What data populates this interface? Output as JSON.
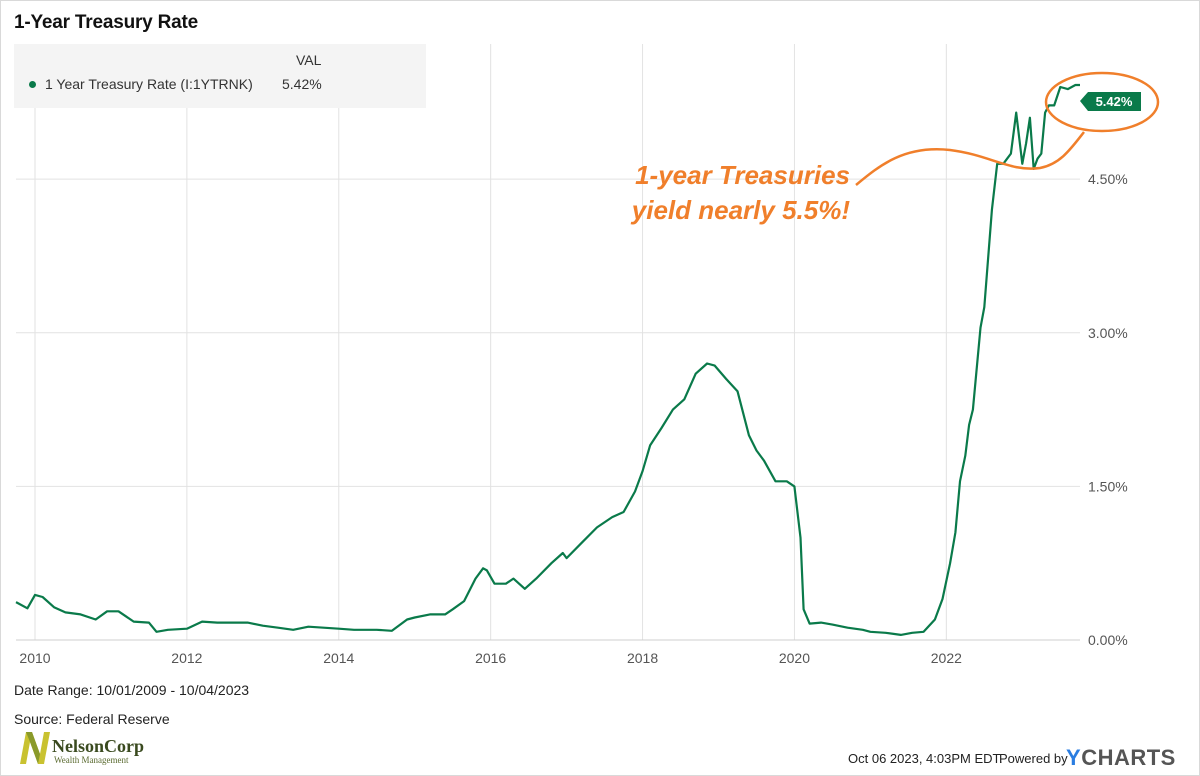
{
  "title": "1-Year Treasury Rate",
  "legend": {
    "header": "VAL",
    "series_name": "1 Year Treasury Rate (I:1YTRNK)",
    "series_value": "5.42%"
  },
  "annotation": {
    "line1": "1-year Treasuries",
    "line2": "yield nearly 5.5%!"
  },
  "footer": {
    "date_range": "Date Range: 10/01/2009 - 10/04/2023",
    "source": "Source: Federal Reserve",
    "timestamp": "Oct 06 2023, 4:03PM EDT.",
    "powered_by": "Powered by",
    "brand_prefix": "Y",
    "brand_rest": "CHARTS"
  },
  "logo": {
    "name": "NelsonCorp",
    "subtitle": "Wealth Management"
  },
  "colors": {
    "series": "#0a7a4a",
    "annotation": "#f07f2b",
    "grid": "#e2e2e2",
    "brand_blue": "#2a7de1"
  },
  "chart_data": {
    "type": "line",
    "title": "1-Year Treasury Rate",
    "x_ticks": [
      "2010",
      "2012",
      "2014",
      "2016",
      "2018",
      "2020",
      "2022"
    ],
    "y_ticks": [
      "0.00%",
      "1.50%",
      "3.00%",
      "4.50%"
    ],
    "xlim": [
      2009.75,
      2023.76
    ],
    "ylim": [
      0,
      5.82
    ],
    "grid": true,
    "legend_position": "top-left",
    "last_value_label": "5.42%",
    "series": [
      {
        "name": "1 Year Treasury Rate (I:1YTRNK)",
        "color": "#0a7a4a",
        "x": [
          2009.75,
          2009.9,
          2010.0,
          2010.1,
          2010.25,
          2010.4,
          2010.6,
          2010.8,
          2010.95,
          2011.1,
          2011.3,
          2011.5,
          2011.6,
          2011.75,
          2012.0,
          2012.2,
          2012.4,
          2012.6,
          2012.8,
          2013.0,
          2013.2,
          2013.4,
          2013.6,
          2013.8,
          2014.0,
          2014.2,
          2014.5,
          2014.7,
          2014.9,
          2015.0,
          2015.2,
          2015.4,
          2015.5,
          2015.65,
          2015.8,
          2015.9,
          2015.95,
          2016.05,
          2016.2,
          2016.3,
          2016.45,
          2016.6,
          2016.8,
          2016.95,
          2017.0,
          2017.2,
          2017.4,
          2017.6,
          2017.75,
          2017.9,
          2018.0,
          2018.1,
          2018.25,
          2018.4,
          2018.55,
          2018.7,
          2018.85,
          2018.95,
          2019.1,
          2019.25,
          2019.4,
          2019.5,
          2019.6,
          2019.75,
          2019.9,
          2020.0,
          2020.08,
          2020.12,
          2020.2,
          2020.35,
          2020.5,
          2020.7,
          2020.9,
          2021.0,
          2021.2,
          2021.4,
          2021.55,
          2021.7,
          2021.85,
          2021.95,
          2022.05,
          2022.12,
          2022.18,
          2022.25,
          2022.3,
          2022.35,
          2022.45,
          2022.5,
          2022.6,
          2022.67,
          2022.75,
          2022.8,
          2022.85,
          2022.92,
          2023.0,
          2023.05,
          2023.1,
          2023.15,
          2023.2,
          2023.25,
          2023.3,
          2023.35,
          2023.42,
          2023.5,
          2023.6,
          2023.7,
          2023.76
        ],
        "y": [
          0.37,
          0.31,
          0.44,
          0.42,
          0.32,
          0.27,
          0.25,
          0.2,
          0.28,
          0.28,
          0.18,
          0.17,
          0.08,
          0.1,
          0.11,
          0.18,
          0.17,
          0.17,
          0.17,
          0.14,
          0.12,
          0.1,
          0.13,
          0.12,
          0.11,
          0.1,
          0.1,
          0.09,
          0.2,
          0.22,
          0.25,
          0.25,
          0.3,
          0.38,
          0.6,
          0.7,
          0.68,
          0.55,
          0.55,
          0.6,
          0.5,
          0.6,
          0.75,
          0.85,
          0.8,
          0.95,
          1.1,
          1.2,
          1.25,
          1.45,
          1.65,
          1.9,
          2.07,
          2.25,
          2.35,
          2.6,
          2.7,
          2.68,
          2.55,
          2.43,
          2.0,
          1.85,
          1.75,
          1.55,
          1.55,
          1.5,
          1.0,
          0.3,
          0.16,
          0.17,
          0.15,
          0.12,
          0.1,
          0.08,
          0.07,
          0.05,
          0.07,
          0.08,
          0.2,
          0.4,
          0.75,
          1.05,
          1.55,
          1.8,
          2.1,
          2.25,
          3.05,
          3.25,
          4.2,
          4.65,
          4.65,
          4.7,
          4.75,
          5.15,
          4.65,
          4.85,
          5.1,
          4.6,
          4.7,
          4.75,
          5.15,
          5.22,
          5.22,
          5.4,
          5.38,
          5.42,
          5.42
        ]
      }
    ]
  }
}
